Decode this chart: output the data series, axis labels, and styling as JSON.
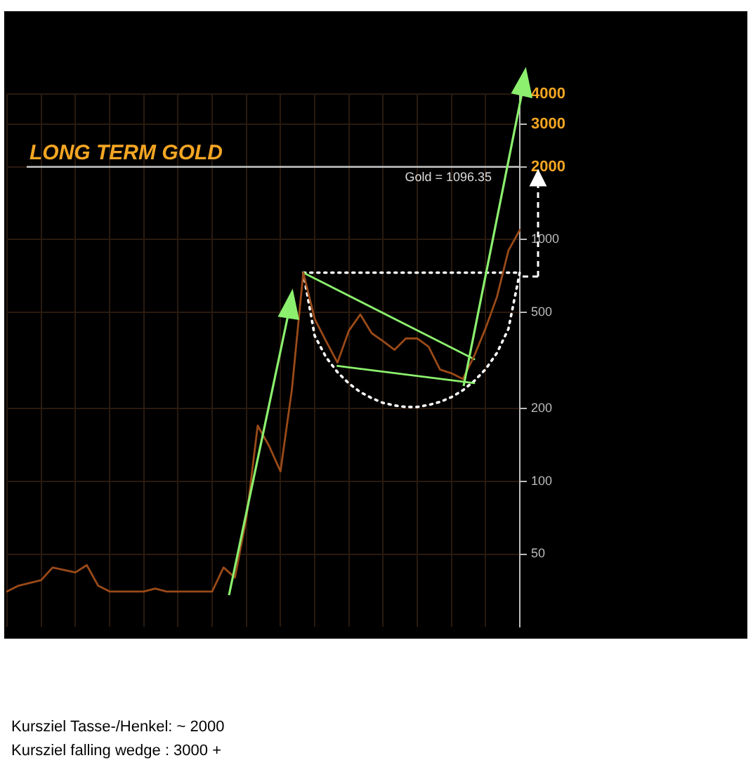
{
  "chart_data": {
    "type": "line",
    "title": "LONG TERM GOLD",
    "categories": [
      null,
      null,
      null,
      null,
      null,
      null,
      null,
      null,
      null,
      null,
      null,
      null,
      null,
      null,
      null,
      null,
      null,
      null,
      null,
      null,
      null,
      null,
      null,
      null,
      null,
      null,
      null,
      null,
      null,
      null,
      null,
      null,
      null,
      null,
      null,
      null,
      null,
      null,
      null,
      null,
      null,
      null,
      null,
      null,
      null,
      null
    ],
    "series": [
      {
        "color": "#9a4a18",
        "values": [
          35,
          37,
          38,
          39,
          44,
          43,
          42,
          45,
          37,
          35,
          35,
          35,
          35,
          36,
          35,
          35,
          35,
          35,
          35,
          44,
          40,
          70,
          170,
          140,
          110,
          240,
          730,
          470,
          380,
          310,
          420,
          490,
          410,
          380,
          350,
          390,
          390,
          360,
          290,
          280,
          265,
          330,
          430,
          580,
          900,
          1096
        ]
      },
      {
        "type": "line",
        "color": "#8cf06e",
        "values": [
          null,
          null,
          null,
          null,
          null,
          null,
          null,
          null,
          null,
          null,
          null,
          null,
          null,
          null,
          null,
          null,
          null,
          null,
          null,
          null,
          null,
          null,
          null,
          null,
          null,
          null,
          730,
          null,
          null,
          null,
          null,
          null,
          null,
          null,
          null,
          null,
          null,
          null,
          null,
          null,
          null,
          320,
          null,
          null,
          null,
          null
        ]
      },
      {
        "type": "line",
        "color": "#8cf06e",
        "values": [
          null,
          null,
          null,
          null,
          null,
          null,
          null,
          null,
          null,
          null,
          null,
          null,
          null,
          null,
          null,
          null,
          null,
          null,
          null,
          null,
          null,
          null,
          null,
          null,
          null,
          null,
          null,
          null,
          null,
          300,
          null,
          null,
          null,
          null,
          null,
          null,
          null,
          null,
          null,
          null,
          null,
          255,
          null,
          null,
          null,
          null
        ]
      },
      {
        "type": "line",
        "color": "#ffffff",
        "line_style": "dotted",
        "values": [
          null,
          null,
          null,
          null,
          null,
          null,
          null,
          null,
          null,
          null,
          null,
          null,
          null,
          null,
          null,
          null,
          null,
          null,
          null,
          null,
          null,
          null,
          null,
          null,
          null,
          null,
          730,
          400,
          326,
          283,
          254,
          234,
          221,
          211,
          206,
          203,
          203,
          207,
          213,
          223,
          238,
          260,
          291,
          340,
          427,
          730
        ]
      },
      {
        "type": "line",
        "color": "#ffffff",
        "line_style": "dotted",
        "values": [
          null,
          null,
          null,
          null,
          null,
          null,
          null,
          null,
          null,
          null,
          null,
          null,
          null,
          null,
          null,
          null,
          null,
          null,
          null,
          null,
          null,
          null,
          null,
          null,
          null,
          null,
          730,
          null,
          null,
          null,
          null,
          null,
          null,
          null,
          null,
          null,
          null,
          null,
          null,
          null,
          null,
          null,
          null,
          null,
          null,
          730
        ]
      }
    ],
    "log": true,
    "ylim": [
      25,
      4000
    ],
    "yticks": [
      50,
      100,
      200,
      500,
      1000,
      2000,
      3000,
      4000
    ],
    "grid": true,
    "tick_labels": "y",
    "legend": false,
    "ref_lines": [
      {
        "axis": "y",
        "value": 2000,
        "color": "#c8c8c8"
      }
    ],
    "annotations": [
      "Gold = 1096.35",
      "Kursziel Tasse-/Henkel: ~ 2000",
      "Kursziel falling wedge : 3000 +"
    ]
  }
}
